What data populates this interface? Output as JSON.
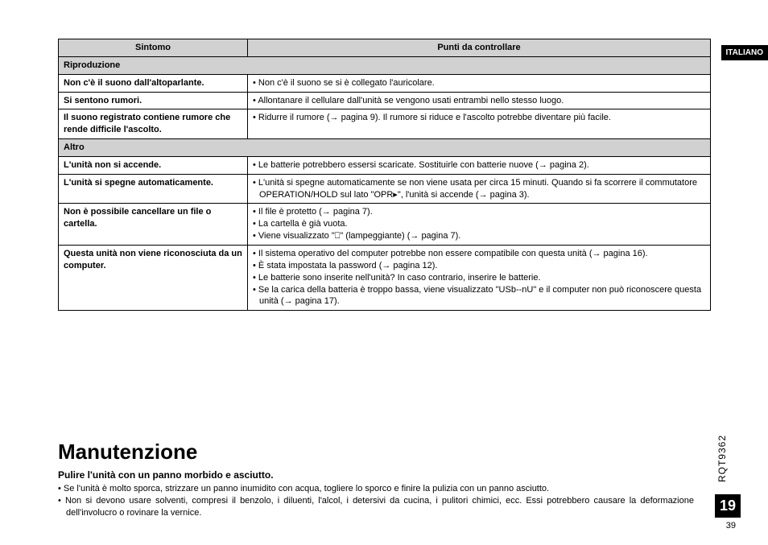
{
  "language_tab": "ITALIANO",
  "doc_code": "RQT9362",
  "page_badge": "19",
  "page_number": "39",
  "table": {
    "headers": {
      "symptom": "Sintomo",
      "check": "Punti da controllare"
    },
    "sections": [
      {
        "title": "Riproduzione",
        "rows": [
          {
            "symptom": "Non c'è il suono dall'altoparlante.",
            "points": [
              "Non c'è il suono se si è collegato l'auricolare."
            ]
          },
          {
            "symptom": "Si sentono rumori.",
            "points": [
              "Allontanare il cellulare dall'unità se vengono usati entrambi nello stesso luogo."
            ]
          },
          {
            "symptom": "Il suono registrato contiene rumore che rende difficile l'ascolto.",
            "points": [
              "Ridurre il rumore (→ pagina 9). Il rumore si riduce e l'ascolto potrebbe diventare più facile."
            ]
          }
        ]
      },
      {
        "title": "Altro",
        "rows": [
          {
            "symptom": "L'unità non si accende.",
            "points": [
              "Le batterie potrebbero essersi scaricate. Sostituirle con batterie nuove  (→ pagina 2)."
            ]
          },
          {
            "symptom": "L'unità si spegne automaticamente.",
            "points": [
              "L'unità si spegne automaticamente se non viene usata per circa 15 minuti. Quando si fa scorrere il commutatore OPERATION/HOLD sul lato \"OPR▸\", l'unità si accende (→ pagina 3)."
            ]
          },
          {
            "symptom": "Non è possibile cancellare un file o cartella.",
            "points": [
              "Il file è protetto (→ pagina 7).",
              "La cartella è già vuota.",
              "Viene visualizzato \"⎕\" (lampeggiante) (→ pagina 7)."
            ]
          },
          {
            "symptom": "Questa unità non viene riconosciuta da un computer.",
            "points": [
              "Il sistema operativo del computer potrebbe non essere compatibile con questa unità (→ pagina 16).",
              "È stata impostata la password (→ pagina 12).",
              "Le batterie sono inserite nell'unità? In caso contrario, inserire le batterie.",
              "Se la carica della batteria è troppo bassa, viene visualizzato \"USb--nU\" e il computer non può riconoscere questa unità (→ pagina 17)."
            ]
          }
        ]
      }
    ]
  },
  "maintenance": {
    "title": "Manutenzione",
    "subhead": "Pulire l'unità con un panno morbido e asciutto.",
    "points": [
      "Se l'unità è molto sporca, strizzare un panno inumidito con acqua, togliere lo sporco e finire la pulizia con un panno asciutto.",
      "Non si devono usare solventi, compresi il benzolo, i diluenti, l'alcol, i detersivi da cucina, i pulitori chimici, ecc. Essi potrebbero causare la deformazione dell'involucro o rovinare la vernice."
    ]
  }
}
